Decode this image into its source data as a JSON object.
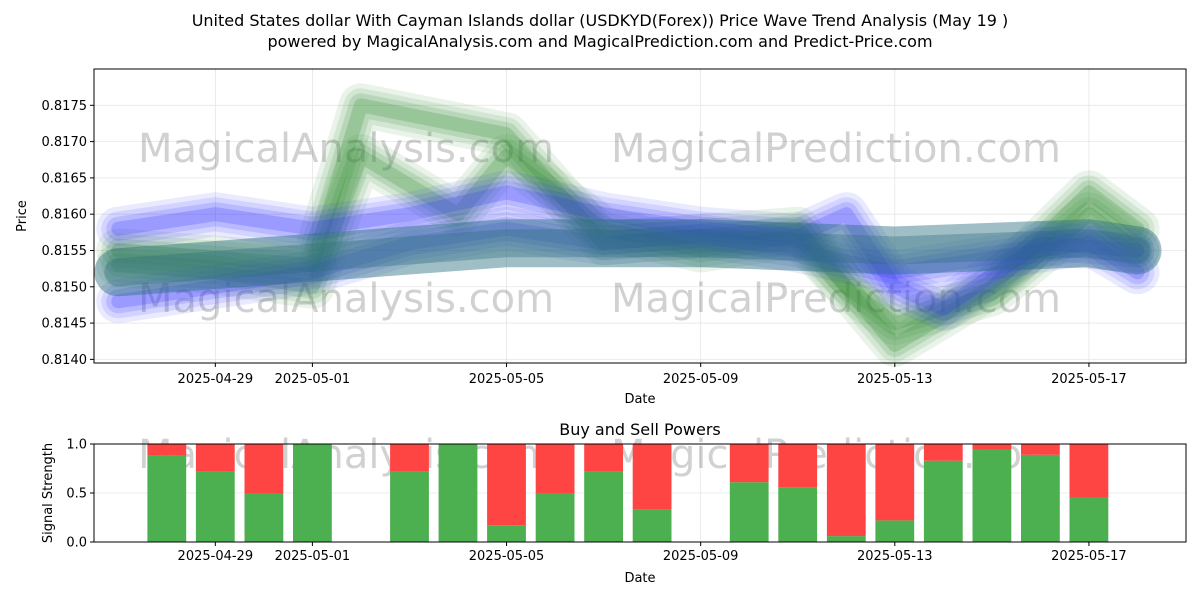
{
  "title_line1": "United States dollar With Cayman Islands dollar (USDKYD(Forex)) Price Wave Trend Analysis (May 19 )",
  "title_line2": "powered by MagicalAnalysis.com and MagicalPrediction.com and Predict-Price.com",
  "watermarks": [
    "MagicalAnalysis.com",
    "MagicalPrediction.com"
  ],
  "colors": {
    "buy": "#4caf50",
    "sell": "#ff4444",
    "wave_green": "#2e8b2e",
    "wave_blue": "#3333ff",
    "wave_teal": "#2a6e7e"
  },
  "chart_data": [
    {
      "type": "line",
      "title": "",
      "xlabel": "Date",
      "ylabel": "Price",
      "xlim": [
        "2025-04-26T12:00",
        "2025-05-19T00:00"
      ],
      "ylim": [
        0.81395,
        0.818
      ],
      "yticks": [
        "0.8140",
        "0.8145",
        "0.8150",
        "0.8155",
        "0.8160",
        "0.8165",
        "0.8170",
        "0.8175"
      ],
      "xticks": [
        "2025-04-29",
        "2025-05-01",
        "2025-05-05",
        "2025-05-09",
        "2025-05-13",
        "2025-05-17"
      ],
      "grid": true,
      "series": [
        {
          "color": "green",
          "x": [
            "2025-04-27",
            "2025-04-29",
            "2025-05-01",
            "2025-05-02",
            "2025-05-05",
            "2025-05-07",
            "2025-05-09",
            "2025-05-11",
            "2025-05-13",
            "2025-05-15",
            "2025-05-17",
            "2025-05-18"
          ],
          "y": [
            0.8155,
            0.8154,
            0.8153,
            0.8175,
            0.8171,
            0.8156,
            0.8157,
            0.8158,
            0.8142,
            0.815,
            0.8163,
            0.8158
          ]
        },
        {
          "color": "green",
          "x": [
            "2025-04-27",
            "2025-04-29",
            "2025-05-01",
            "2025-05-02",
            "2025-05-04",
            "2025-05-05",
            "2025-05-07",
            "2025-05-09",
            "2025-05-11",
            "2025-05-12",
            "2025-05-13",
            "2025-05-15",
            "2025-05-17",
            "2025-05-18"
          ],
          "y": [
            0.8153,
            0.8152,
            0.815,
            0.8168,
            0.816,
            0.8168,
            0.8158,
            0.8155,
            0.8157,
            0.815,
            0.8145,
            0.8149,
            0.816,
            0.8155
          ]
        },
        {
          "color": "blue",
          "x": [
            "2025-04-27",
            "2025-04-29",
            "2025-05-01",
            "2025-05-03",
            "2025-05-05",
            "2025-05-07",
            "2025-05-09",
            "2025-05-11",
            "2025-05-12",
            "2025-05-13",
            "2025-05-14",
            "2025-05-16",
            "2025-05-18"
          ],
          "y": [
            0.8158,
            0.816,
            0.8158,
            0.816,
            0.8163,
            0.816,
            0.8158,
            0.8157,
            0.816,
            0.815,
            0.8147,
            0.8156,
            0.8155
          ]
        },
        {
          "color": "blue",
          "x": [
            "2025-04-27",
            "2025-04-29",
            "2025-05-01",
            "2025-05-03",
            "2025-05-05",
            "2025-05-07",
            "2025-05-09",
            "2025-05-11",
            "2025-05-13",
            "2025-05-15",
            "2025-05-17",
            "2025-05-18"
          ],
          "y": [
            0.8148,
            0.815,
            0.8152,
            0.8156,
            0.8158,
            0.8156,
            0.8157,
            0.8155,
            0.8152,
            0.8154,
            0.8156,
            0.8152
          ]
        },
        {
          "color": "teal",
          "x": [
            "2025-04-27",
            "2025-05-01",
            "2025-05-05",
            "2025-05-09",
            "2025-05-13",
            "2025-05-17",
            "2025-05-18"
          ],
          "y": [
            0.8152,
            0.8154,
            0.8156,
            0.8156,
            0.8155,
            0.8156,
            0.8155
          ]
        }
      ]
    },
    {
      "type": "bar",
      "title": "Buy and Sell Powers",
      "xlabel": "Date",
      "ylabel": "Signal Strength",
      "xlim": [
        "2025-04-26T12:00",
        "2025-05-19T00:00"
      ],
      "ylim": [
        0,
        1
      ],
      "yticks": [
        "0.0",
        "0.5",
        "1.0"
      ],
      "xticks": [
        "2025-04-29",
        "2025-05-01",
        "2025-05-05",
        "2025-05-09",
        "2025-05-13",
        "2025-05-17"
      ],
      "grid": true,
      "categories": [
        "2025-04-28",
        "2025-04-29",
        "2025-04-30",
        "2025-05-01",
        "2025-05-03",
        "2025-05-04",
        "2025-05-05",
        "2025-05-06",
        "2025-05-07",
        "2025-05-08",
        "2025-05-10",
        "2025-05-11",
        "2025-05-12",
        "2025-05-13",
        "2025-05-14",
        "2025-05-15",
        "2025-05-16",
        "2025-05-17"
      ],
      "series": [
        {
          "color": "green",
          "values": [
            0.88,
            0.72,
            0.5,
            1.0,
            0.72,
            1.0,
            0.17,
            0.5,
            0.72,
            0.33,
            0.61,
            0.56,
            0.06,
            0.22,
            0.83,
            0.94,
            0.89,
            0.45
          ]
        },
        {
          "color": "red",
          "values": [
            0.12,
            0.28,
            0.5,
            0.0,
            0.28,
            0.0,
            0.83,
            0.5,
            0.28,
            0.67,
            0.39,
            0.44,
            0.94,
            0.78,
            0.17,
            0.06,
            0.11,
            0.55
          ]
        }
      ]
    }
  ]
}
